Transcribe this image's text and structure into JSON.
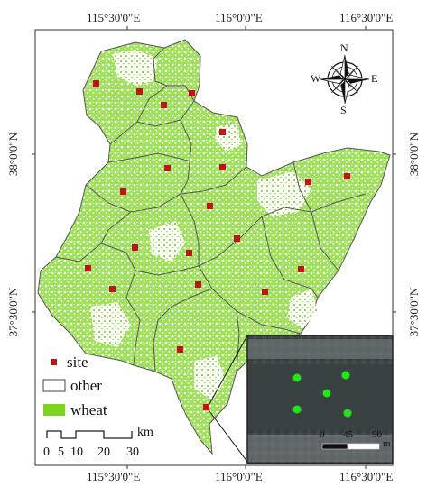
{
  "map": {
    "coord_labels": {
      "top": [
        "115°30'0\"E",
        "116°0'0\"E",
        "116°30'0\"E"
      ],
      "bottom": [
        "115°30'0\"E",
        "116°0'0\"E",
        "116°30'0\"E"
      ],
      "left": [
        "38°0'0\"N",
        "37°30'0\"N"
      ],
      "right": [
        "38°0'0\"N",
        "37°30'0\"N"
      ]
    },
    "compass": {
      "n": "N",
      "s": "S",
      "e": "E",
      "w": "W"
    },
    "legend": {
      "site_label": "site",
      "other_label": "other",
      "wheat_label": "wheat"
    },
    "scale_bar": {
      "unit": "km",
      "ticks": [
        "0",
        "5",
        "10",
        "20",
        "30"
      ]
    },
    "inset": {
      "scale_unit": "m",
      "ticks": [
        "0",
        "45",
        "90"
      ]
    },
    "colors": {
      "wheat": "#7dd321",
      "site": "#c0141b",
      "boundary": "#555555",
      "inset_point": "#22e51a"
    }
  }
}
